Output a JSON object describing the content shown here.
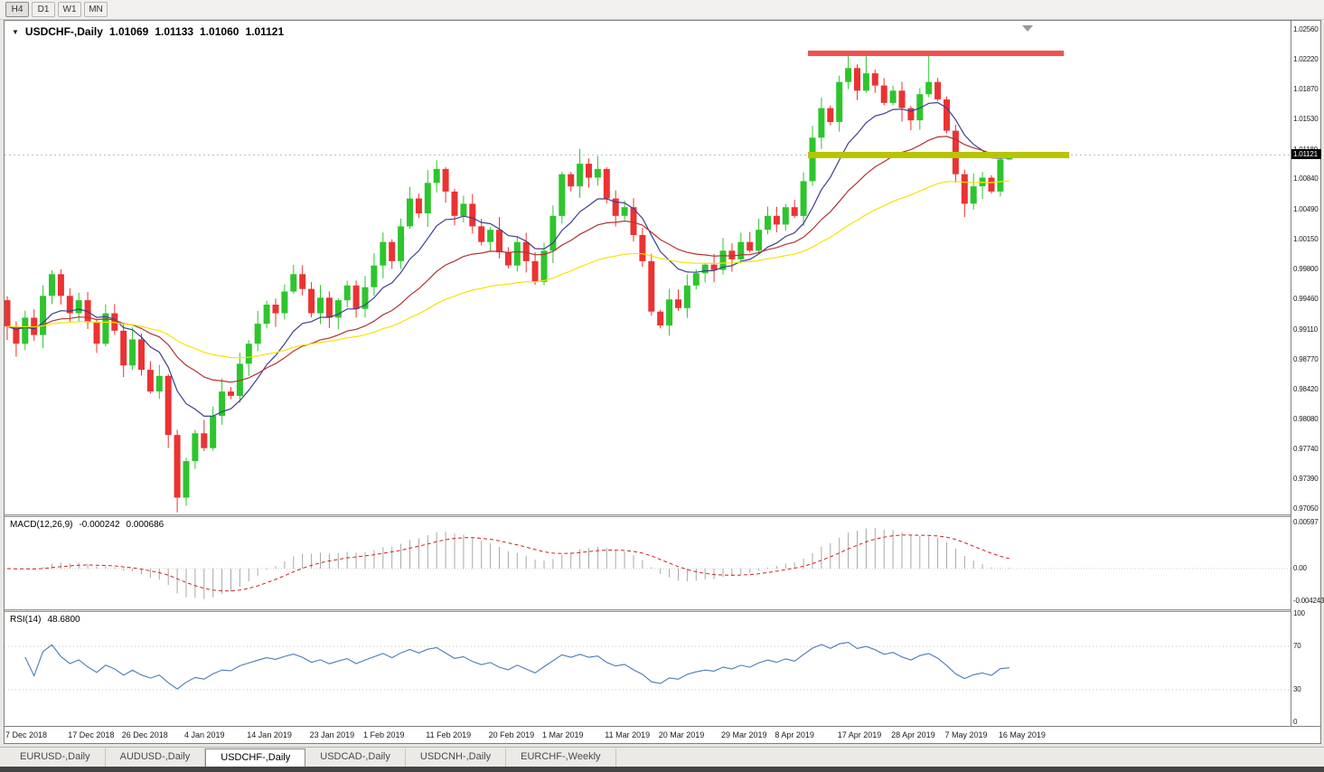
{
  "toolbar": {
    "timeframes": [
      {
        "label": "H4",
        "active": true
      },
      {
        "label": "D1",
        "active": false
      },
      {
        "label": "W1",
        "active": false
      },
      {
        "label": "MN",
        "active": false
      }
    ]
  },
  "chart": {
    "title_symbol": "USDCHF-,Daily",
    "quote": {
      "open": "1.01069",
      "high": "1.01133",
      "low": "1.01060",
      "close": "1.01121"
    },
    "current_price": "1.01121",
    "price_axis_labels": [
      "1.02560",
      "1.02220",
      "1.01870",
      "1.01530",
      "1.01180",
      "1.00840",
      "1.00490",
      "1.00150",
      "0.99800",
      "0.99460",
      "0.99110",
      "0.98770",
      "0.98420",
      "0.98080",
      "0.97740",
      "0.97390",
      "0.97050"
    ]
  },
  "macd": {
    "label": "MACD(12,26,9)",
    "value_main": "-0.000242",
    "value_signal": "0.000686",
    "axis": [
      "0.00597",
      "0.00",
      "-0.004243"
    ]
  },
  "rsi": {
    "label": "RSI(14)",
    "value": "48.6800",
    "axis": [
      "100",
      "70",
      "30",
      "0"
    ]
  },
  "date_axis": [
    {
      "label": "7 Dec 2018",
      "bar": 0
    },
    {
      "label": "17 Dec 2018",
      "bar": 7
    },
    {
      "label": "26 Dec 2018",
      "bar": 13
    },
    {
      "label": "4 Jan 2019",
      "bar": 20
    },
    {
      "label": "14 Jan 2019",
      "bar": 27
    },
    {
      "label": "23 Jan 2019",
      "bar": 34
    },
    {
      "label": "1 Feb 2019",
      "bar": 40
    },
    {
      "label": "11 Feb 2019",
      "bar": 47
    },
    {
      "label": "20 Feb 2019",
      "bar": 54
    },
    {
      "label": "1 Mar 2019",
      "bar": 60
    },
    {
      "label": "11 Mar 2019",
      "bar": 67
    },
    {
      "label": "20 Mar 2019",
      "bar": 73
    },
    {
      "label": "29 Mar 2019",
      "bar": 80
    },
    {
      "label": "8 Apr 2019",
      "bar": 86
    },
    {
      "label": "17 Apr 2019",
      "bar": 93
    },
    {
      "label": "28 Apr 2019",
      "bar": 99
    },
    {
      "label": "7 May 2019",
      "bar": 105
    },
    {
      "label": "16 May 2019",
      "bar": 111
    }
  ],
  "tabs": {
    "items": [
      "EURUSD-,Daily",
      "AUDUSD-,Daily",
      "USDCHF-,Daily",
      "USDCAD-,Daily",
      "USDCNH-,Daily",
      "EURCHF-,Weekly"
    ],
    "active_index": 2
  },
  "chart_data": {
    "type": "candlestick",
    "symbol": "USDCHF",
    "timeframe": "Daily",
    "ylim": [
      0.9705,
      1.0256
    ],
    "first_open": 0.9945,
    "closes": [
      0.9915,
      0.9895,
      0.9925,
      0.9905,
      0.995,
      0.9975,
      0.995,
      0.993,
      0.9945,
      0.992,
      0.9895,
      0.993,
      0.991,
      0.987,
      0.99,
      0.9865,
      0.984,
      0.9858,
      0.979,
      0.9718,
      0.976,
      0.9792,
      0.9775,
      0.9812,
      0.984,
      0.9835,
      0.9872,
      0.9895,
      0.9918,
      0.994,
      0.993,
      0.9955,
      0.9975,
      0.9958,
      0.993,
      0.9948,
      0.9925,
      0.9945,
      0.9962,
      0.9935,
      0.996,
      0.9985,
      1.0012,
      0.999,
      1.003,
      1.0062,
      1.0045,
      1.008,
      1.0096,
      1.007,
      1.0042,
      1.0056,
      1.003,
      1.0012,
      1.0026,
      1.0,
      0.9985,
      1.0012,
      0.999,
      0.9966,
      1.0002,
      1.0042,
      1.009,
      1.0076,
      1.0102,
      1.0086,
      1.0096,
      1.0062,
      1.0042,
      1.0052,
      1.002,
      0.999,
      0.9932,
      0.9916,
      0.9946,
      0.9936,
      0.9962,
      0.9976,
      0.9986,
      0.998,
      1.0002,
      0.9992,
      1.0012,
      1.0002,
      1.0026,
      1.0042,
      1.0032,
      1.0052,
      1.0042,
      1.0082,
      1.0132,
      1.0166,
      1.015,
      1.0196,
      1.0212,
      1.0186,
      1.0206,
      1.0192,
      1.0172,
      1.0186,
      1.0166,
      1.0152,
      1.0182,
      1.0196,
      1.0176,
      1.014,
      1.009,
      1.0056,
      1.0076,
      1.0086,
      1.007,
      1.01069,
      1.01121
    ],
    "last_bar": {
      "open": 1.01069,
      "high": 1.01133,
      "low": 1.0106,
      "close": 1.01121
    },
    "wick_overrides": [
      {
        "i": 19,
        "l": 0.9701
      },
      {
        "i": 64,
        "h": 1.0119
      },
      {
        "i": 94,
        "h": 1.0229
      },
      {
        "i": 96,
        "h": 1.0231
      },
      {
        "i": 103,
        "h": 1.0227
      }
    ],
    "colors": {
      "up": "#2dc52d",
      "down": "#ec3232"
    },
    "overlays": {
      "resistance_line": {
        "price": 1.0229,
        "bar_start": 89.5,
        "bar_end": 118.1,
        "color": "#f4504d",
        "width": 6
      },
      "support_line": {
        "price": 1.0112,
        "bar_start": 89.5,
        "bar_end": 118.7,
        "color": "#b9c400",
        "width": 7
      },
      "moving_averages": [
        {
          "name": "fast",
          "type": "ema",
          "period": 10,
          "color": "#3c3f8f"
        },
        {
          "name": "medium",
          "type": "ema",
          "period": 24,
          "color": "#b03434"
        },
        {
          "name": "slow",
          "type": "ema",
          "period": 52,
          "color": "#f5e400"
        }
      ]
    },
    "indicators": {
      "macd": {
        "fast": 12,
        "slow": 26,
        "signal": 9,
        "histogram_color": "#a8a8a8",
        "signal_color": "#cc2222"
      },
      "rsi": {
        "period": 14,
        "line_color": "#4a7ab5",
        "levels": [
          70,
          30
        ]
      }
    }
  }
}
